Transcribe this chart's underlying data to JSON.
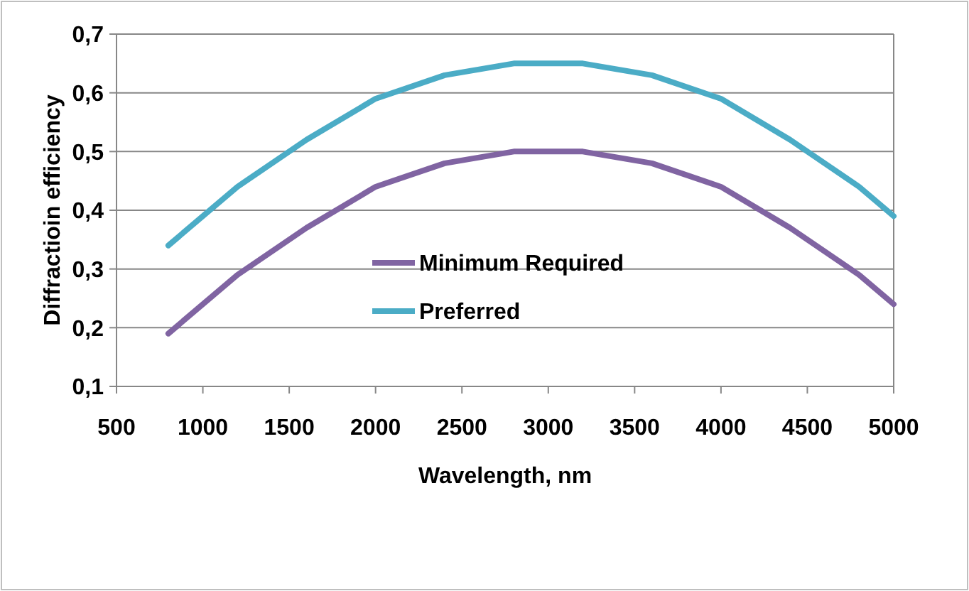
{
  "chart_data": {
    "type": "line",
    "xlabel": "Wavelength, nm",
    "ylabel": "Diffractioin efficiency",
    "x": [
      800,
      1200,
      1600,
      2000,
      2400,
      2800,
      3200,
      3600,
      4000,
      4400,
      4800,
      5000
    ],
    "series": [
      {
        "name": "Minimum Required",
        "color": "#8064a2",
        "values": [
          0.19,
          0.29,
          0.37,
          0.44,
          0.48,
          0.5,
          0.5,
          0.48,
          0.44,
          0.37,
          0.29,
          0.24
        ]
      },
      {
        "name": "Preferred",
        "color": "#4bacc6",
        "values": [
          0.34,
          0.44,
          0.52,
          0.59,
          0.63,
          0.65,
          0.65,
          0.63,
          0.59,
          0.52,
          0.44,
          0.39
        ]
      }
    ],
    "xlim": [
      500,
      5000
    ],
    "xticks": [
      500,
      1000,
      1500,
      2000,
      2500,
      3000,
      3500,
      4000,
      4500,
      5000
    ],
    "ylim": [
      0.1,
      0.7
    ],
    "yticks": [
      {
        "value": 0.1,
        "label": "0,1"
      },
      {
        "value": 0.2,
        "label": "0,2"
      },
      {
        "value": 0.3,
        "label": "0,3"
      },
      {
        "value": 0.4,
        "label": "0,4"
      },
      {
        "value": 0.5,
        "label": "0,5"
      },
      {
        "value": 0.6,
        "label": "0,6"
      },
      {
        "value": 0.7,
        "label": "0,7"
      }
    ],
    "grid": "y",
    "legend": "center",
    "marker": "none",
    "line_style": "solid"
  }
}
